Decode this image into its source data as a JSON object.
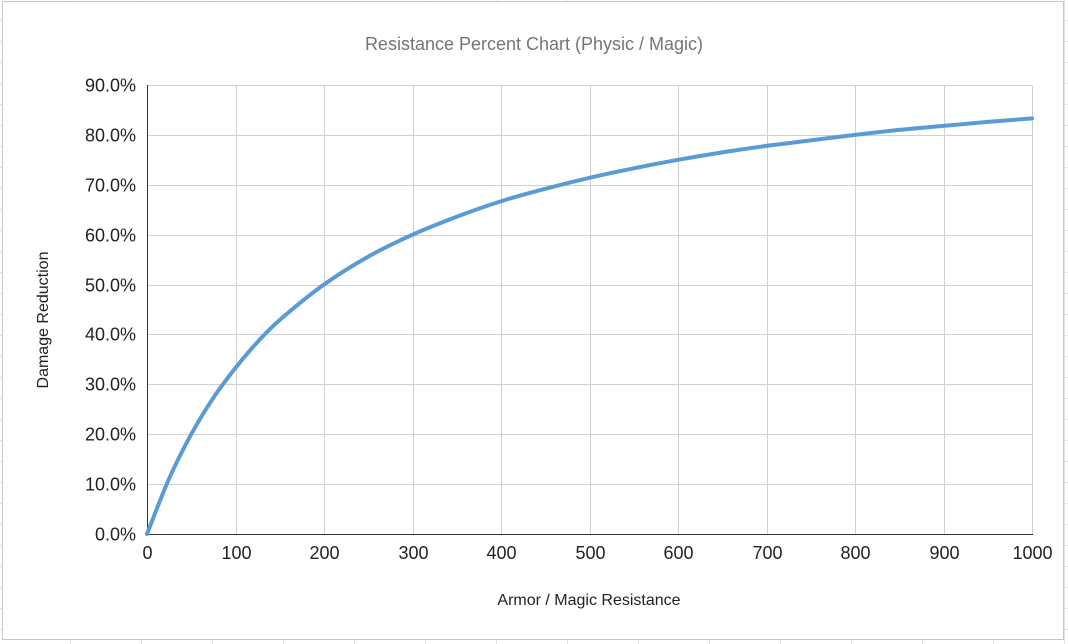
{
  "chart_data": {
    "type": "line",
    "title": "Resistance Percent Chart (Physic / Magic)",
    "xlabel": "Armor / Magic Resistance",
    "ylabel": "Damage Reduction",
    "xlim": [
      0,
      1000
    ],
    "ylim": [
      0,
      90
    ],
    "x_ticks": [
      0,
      100,
      200,
      300,
      400,
      500,
      600,
      700,
      800,
      900,
      1000
    ],
    "x_tick_labels": [
      "0",
      "100",
      "200",
      "300",
      "400",
      "500",
      "600",
      "700",
      "800",
      "900",
      "1000"
    ],
    "y_ticks": [
      0,
      10,
      20,
      30,
      40,
      50,
      60,
      70,
      80,
      90
    ],
    "y_tick_labels": [
      "0.0%",
      "10.0%",
      "20.0%",
      "30.0%",
      "40.0%",
      "50.0%",
      "60.0%",
      "70.0%",
      "80.0%",
      "90.0%"
    ],
    "grid": true,
    "legend": "none",
    "series": [
      {
        "color": "#5b9bd5",
        "x": [
          0,
          25,
          50,
          75,
          100,
          125,
          150,
          200,
          250,
          300,
          350,
          400,
          450,
          500,
          550,
          600,
          650,
          700,
          750,
          800,
          850,
          900,
          950,
          1000
        ],
        "values": [
          0,
          11.1,
          20.0,
          27.3,
          33.3,
          38.5,
          42.9,
          50.0,
          55.6,
          60.0,
          63.6,
          66.7,
          69.2,
          71.4,
          73.3,
          75.0,
          76.5,
          77.8,
          78.9,
          80.0,
          81.0,
          81.8,
          82.6,
          83.3
        ]
      }
    ]
  }
}
